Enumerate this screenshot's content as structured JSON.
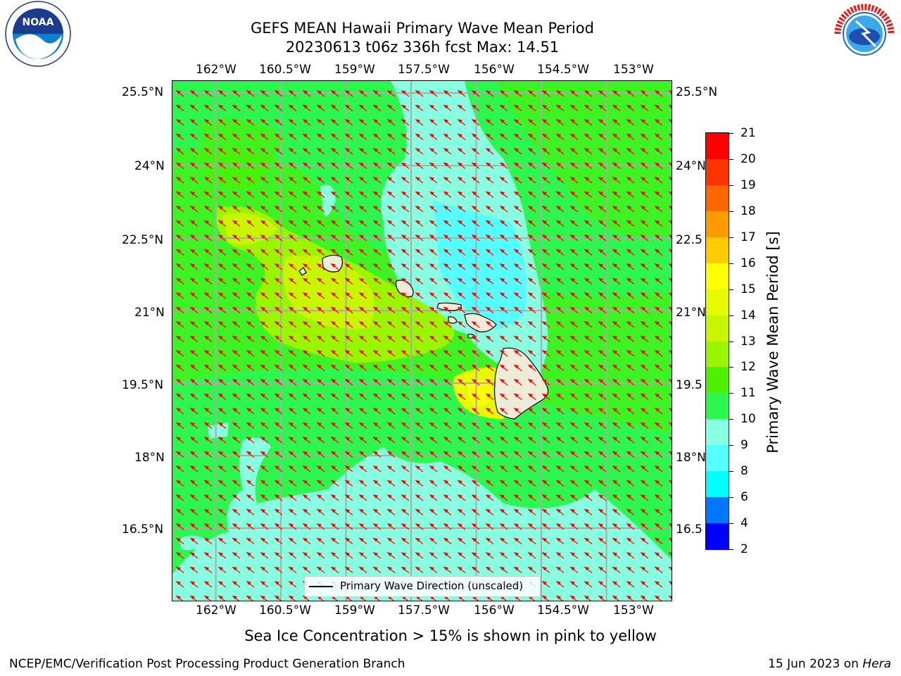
{
  "title": {
    "line1": "GEFS MEAN Hawaii Primary Wave Mean Period",
    "line2": "20230613 t06z 336h fcst   Max: 14.51"
  },
  "map": {
    "lon_range": [
      -163.0,
      -151.5
    ],
    "lat_range": [
      15.0,
      25.75
    ],
    "top_ticks": [
      "162°W",
      "160.5°W",
      "159°W",
      "157.5°W",
      "156°W",
      "154.5°W",
      "153°W"
    ],
    "bottom_ticks": [
      "162°W",
      "160.5°W",
      "159°W",
      "157.5°W",
      "156°W",
      "154.5°W",
      "153°W"
    ],
    "left_ticks": [
      "25.5°N",
      "24°N",
      "22.5°N",
      "21°N",
      "19.5°N",
      "18°N",
      "16.5°N"
    ],
    "right_ticks": [
      "25.5°N",
      "24°N",
      "22.5",
      "21°N",
      "19.5",
      "18°N",
      "16.5"
    ],
    "grid": true,
    "ocean_color": "#2df74f",
    "land_color": "#efebd9",
    "vector_color": "#ff0000"
  },
  "colorbar": {
    "ticks": [
      "21",
      "20",
      "19",
      "18",
      "17",
      "16",
      "15",
      "14",
      "13",
      "12",
      "11",
      "10",
      "9",
      "8",
      "6",
      "4",
      "2"
    ],
    "colors": [
      "#ff0000",
      "#ff3300",
      "#ff6600",
      "#ff9900",
      "#ffcc00",
      "#ffff00",
      "#e6fa00",
      "#c8f500",
      "#99f500",
      "#4cf000",
      "#2df74f",
      "#88ffe0",
      "#55ffff",
      "#00ffff",
      "#0077ff",
      "#0000ff"
    ],
    "label": "Primary Wave Mean Period [s]"
  },
  "legend": {
    "label": "Primary Wave Direction (unscaled)"
  },
  "sea_ice_note": "Sea Ice Concentration > 15% is shown in pink to yellow",
  "footer": {
    "left": "NCEP/EMC/Verification Post Processing Product Generation Branch",
    "date": "15 Jun 2023 on ",
    "machine": "Hera"
  },
  "logos": {
    "noaa": "NOAA",
    "nws": "NATIONAL WEATHER SERVICE"
  }
}
